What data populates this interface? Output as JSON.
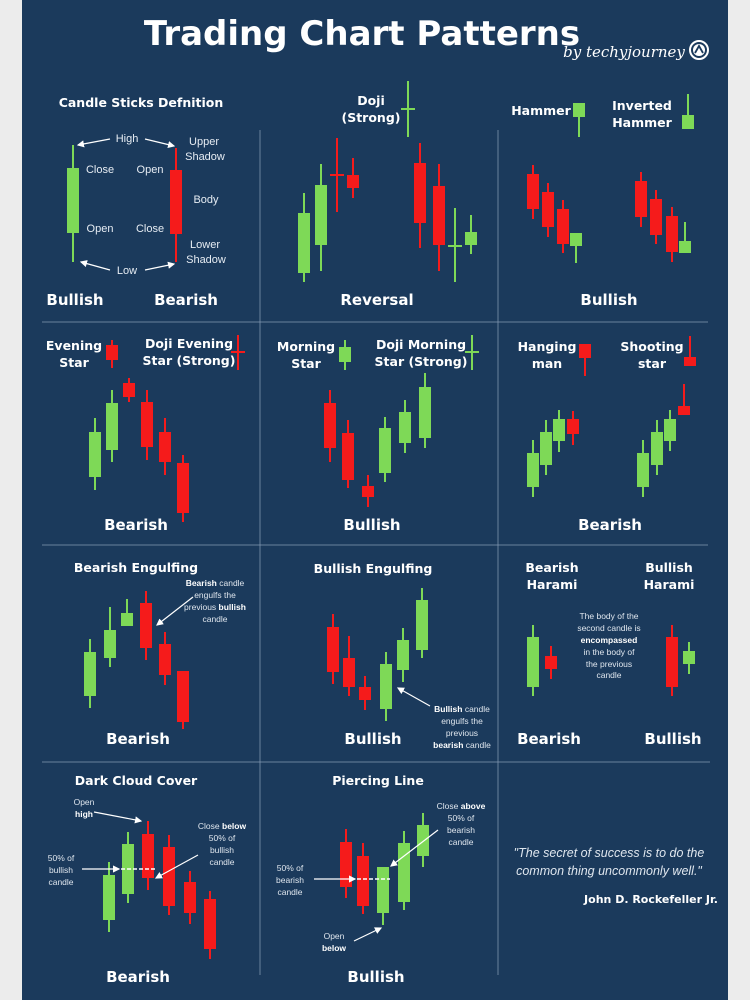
{
  "title": "Trading Chart Patterns",
  "byline": "by techyjourney",
  "logo_icon": "chevron-up-circle-icon",
  "colors": {
    "background": "#1b3a5c",
    "bullish": "#7ed957",
    "bearish": "#f51b1b",
    "bullish_label": "#7ed957",
    "bearish_label": "#ff3030"
  },
  "definition": {
    "title": "Candle Sticks Defnition",
    "high": "High",
    "low": "Low",
    "green_close": "Close",
    "green_open": "Open",
    "red_open": "Open",
    "red_close": "Close",
    "upper_shadow": [
      "Upper",
      "Shadow"
    ],
    "body": "Body",
    "lower_shadow": [
      "Lower",
      "Shadow"
    ],
    "bullish": "Bullish",
    "bearish": "Bearish"
  },
  "reversal": {
    "doji": [
      "Doji",
      "(Strong)"
    ],
    "label": "Reversal"
  },
  "hammer": {
    "hammer": "Hammer",
    "inverted": [
      "Inverted",
      "Hammer"
    ],
    "label": "Bullish"
  },
  "evening": {
    "star": [
      "Evening",
      "Star"
    ],
    "doji": [
      "Doji Evening",
      "Star (Strong)"
    ],
    "label": "Bearish"
  },
  "morning": {
    "star": [
      "Morning",
      "Star"
    ],
    "doji": [
      "Doji Morning",
      "Star (Strong)"
    ],
    "label": "Bullish"
  },
  "hanging": {
    "hanging": [
      "Hanging",
      "man"
    ],
    "shooting": [
      "Shooting",
      "star"
    ],
    "label": "Bearish"
  },
  "bearish_engulfing": {
    "title": "Bearish Engulfing",
    "note": [
      "Bearish",
      " candle",
      "engulfs the",
      "previous ",
      "bullish",
      "candle"
    ],
    "label": "Bearish"
  },
  "bullish_engulfing": {
    "title": "Bullish Engulfing",
    "note": [
      "Bullish",
      " candle",
      "engulfs the",
      "previous",
      "bearish",
      " candle"
    ],
    "label": "Bullish"
  },
  "harami": {
    "bearish": [
      "Bearish",
      "Harami"
    ],
    "bullish": [
      "Bullish",
      "Harami"
    ],
    "note": [
      "The body of the",
      "second candle is",
      "encompassed",
      "in the body of",
      "the previous",
      "candle"
    ],
    "bearish_label": "Bearish",
    "bullish_label": "Bullish"
  },
  "dark_cloud": {
    "title": "Dark Cloud Cover",
    "open_high": [
      "Open",
      "high"
    ],
    "fifty": [
      "50% of",
      "bullish",
      "candle"
    ],
    "close_below": [
      "Close ",
      "below",
      "50% of",
      "bullish",
      "candle"
    ],
    "label": "Bearish"
  },
  "piercing": {
    "title": "Piercing Line",
    "close_above": [
      "Close ",
      "above",
      "50% of",
      "bearish",
      "candle"
    ],
    "fifty": [
      "50% of",
      "bearish",
      "candle"
    ],
    "open_below": [
      "Open",
      "below"
    ],
    "label": "Bullish"
  },
  "quote": {
    "lines": [
      "\"The secret of success is to do the",
      "common thing uncommonly well.\""
    ],
    "author": "John D. Rockefeller Jr."
  }
}
